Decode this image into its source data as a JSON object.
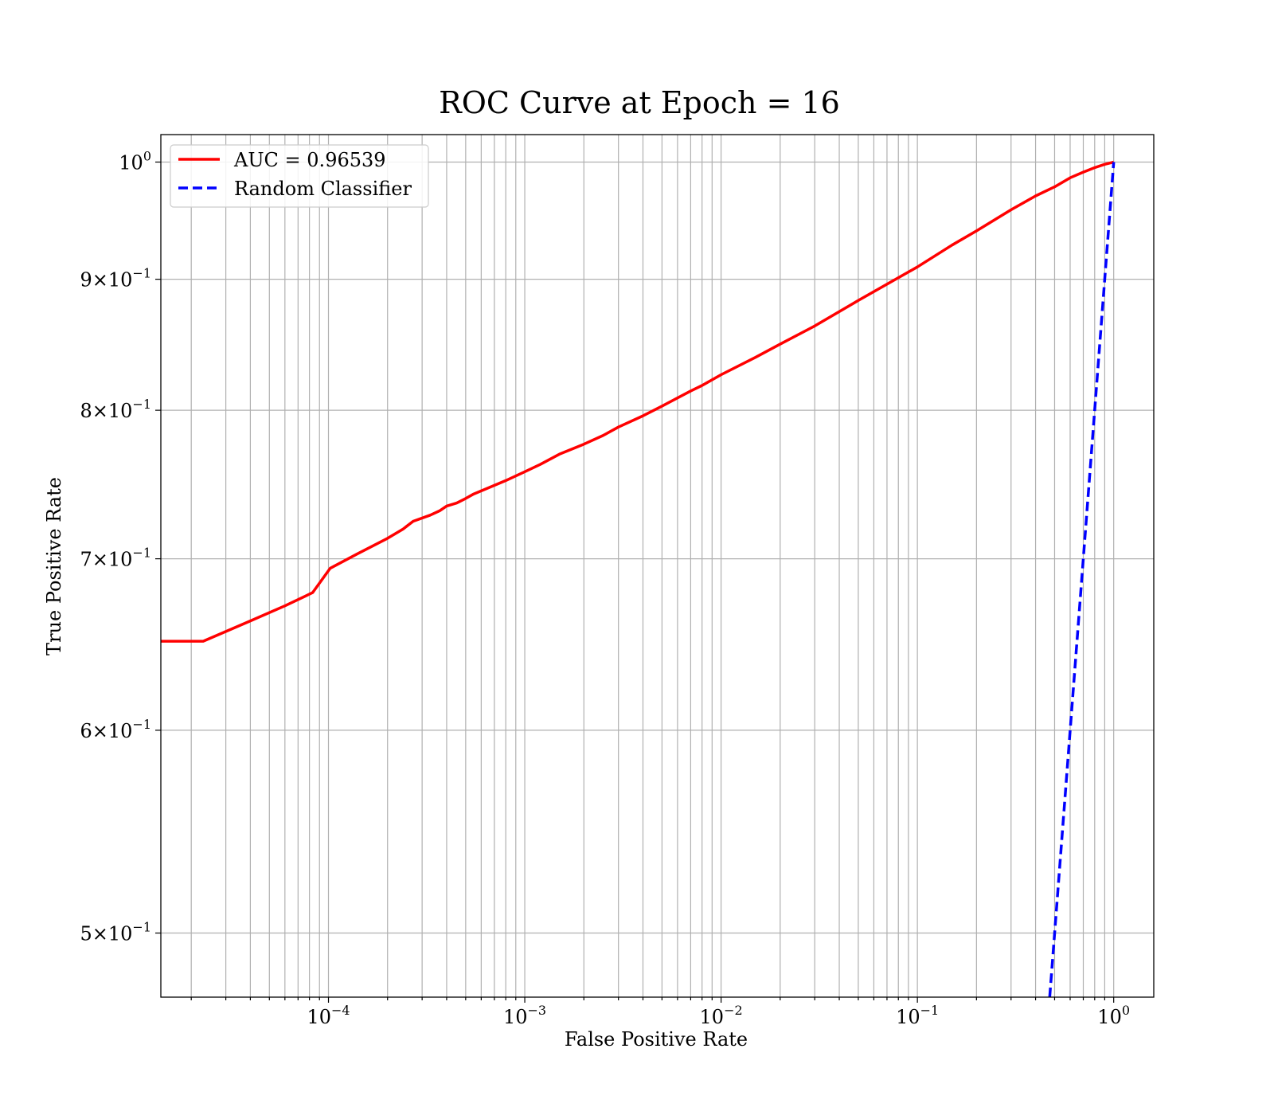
{
  "chart_data": {
    "type": "line",
    "title": "ROC Curve at Epoch = 16",
    "xlabel": "False Positive Rate",
    "ylabel": "True Positive Rate",
    "xscale": "log",
    "yscale": "log",
    "xlim": [
      1.4e-05,
      1.6
    ],
    "ylim": [
      0.472,
      1.025
    ],
    "grid": "on (major and minor)",
    "legend_position": "top-left",
    "xticks": [
      {
        "value": 0.0001,
        "base": "10",
        "exp": "−4"
      },
      {
        "value": 0.001,
        "base": "10",
        "exp": "−3"
      },
      {
        "value": 0.01,
        "base": "10",
        "exp": "−2"
      },
      {
        "value": 0.1,
        "base": "10",
        "exp": "−1"
      },
      {
        "value": 1,
        "base": "10",
        "exp": "0"
      }
    ],
    "yticks": [
      {
        "value": 0.5,
        "mant": "5×",
        "base": "10",
        "exp": "−1"
      },
      {
        "value": 0.6,
        "mant": "6×",
        "base": "10",
        "exp": "−1"
      },
      {
        "value": 0.7,
        "mant": "7×",
        "base": "10",
        "exp": "−1"
      },
      {
        "value": 0.8,
        "mant": "8×",
        "base": "10",
        "exp": "−1"
      },
      {
        "value": 0.9,
        "mant": "9×",
        "base": "10",
        "exp": "−1"
      },
      {
        "value": 1.0,
        "mant": "",
        "base": "10",
        "exp": "0"
      }
    ],
    "series": [
      {
        "name": "AUC = 0.96539",
        "color": "#ff0000",
        "style": "solid",
        "x": [
          1.4e-05,
          2.3e-05,
          4e-05,
          6e-05,
          8.3e-05,
          0.000102,
          0.00014,
          0.0002,
          0.00024,
          0.00027,
          0.00033,
          0.00037,
          0.0004,
          0.00045,
          0.0005,
          0.00055,
          0.00065,
          0.0008,
          0.001,
          0.0012,
          0.0015,
          0.002,
          0.0025,
          0.003,
          0.004,
          0.005,
          0.007,
          0.008,
          0.01,
          0.015,
          0.02,
          0.03,
          0.05,
          0.1,
          0.15,
          0.2,
          0.3,
          0.4,
          0.5,
          0.6,
          0.7,
          0.8,
          0.9,
          1.0
        ],
        "y": [
          0.65,
          0.65,
          0.662,
          0.671,
          0.679,
          0.694,
          0.703,
          0.713,
          0.719,
          0.724,
          0.728,
          0.731,
          0.734,
          0.736,
          0.739,
          0.742,
          0.746,
          0.751,
          0.757,
          0.762,
          0.769,
          0.776,
          0.782,
          0.788,
          0.796,
          0.803,
          0.814,
          0.818,
          0.826,
          0.839,
          0.849,
          0.863,
          0.883,
          0.91,
          0.928,
          0.94,
          0.958,
          0.97,
          0.978,
          0.986,
          0.991,
          0.995,
          0.998,
          1.0
        ]
      },
      {
        "name": "Random Classifier",
        "color": "#0000ff",
        "style": "dashed",
        "x": [
          0.472,
          0.5,
          0.6,
          0.7,
          0.8,
          0.9,
          1.0
        ],
        "y": [
          0.472,
          0.5,
          0.6,
          0.7,
          0.8,
          0.9,
          1.0
        ]
      }
    ]
  }
}
